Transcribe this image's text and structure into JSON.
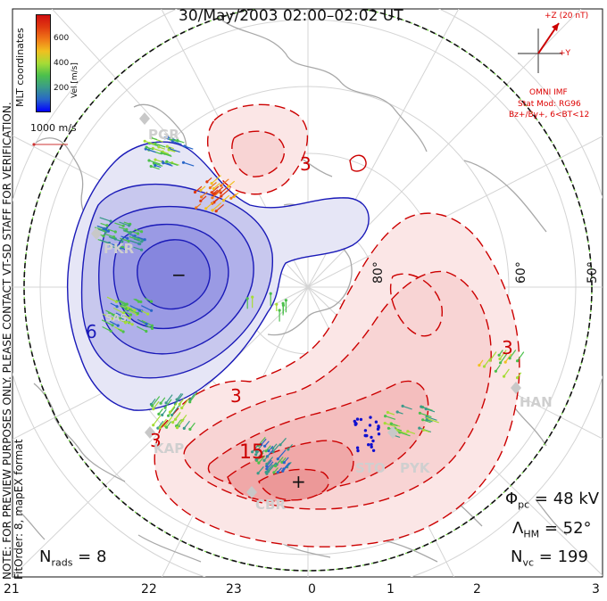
{
  "title": "30/May/2003 02:00–02:02 UT",
  "note_lines": [
    "NOTE: FOR PREVIEW PURPOSES ONLY. PLEASE CONTACT VT-SD STAFF FOR VERIFICATION.",
    "FitOrder: 8, mapEX format"
  ],
  "colorbar": {
    "unit_label": "Vel [m/s]",
    "ticks": [
      "600",
      "400",
      "200"
    ],
    "colors": [
      "#0000ff",
      "#2866c8",
      "#3a9a8a",
      "#4cc04c",
      "#a6dc36",
      "#f0c020",
      "#f07818",
      "#e03a10",
      "#d01010"
    ],
    "coord_label": "MLT coordinates"
  },
  "scale_vector_label": "1000 m/s",
  "imf": {
    "z_label": "+Z (20 nT)",
    "y_label": "+Y",
    "source": "OMNI IMF",
    "stat_mod": "Stat Mod: RG96",
    "condition": "Bz+/By+, 6<BT<12"
  },
  "stats": {
    "phi_pc": "48 kV",
    "lambda_hm": "52°",
    "n_vc": "199",
    "n_rads": "8"
  },
  "mlt_hours": [
    "21",
    "22",
    "23",
    "0",
    "1",
    "2",
    "3"
  ],
  "latitude_labels": [
    "80°",
    "60°",
    "50°"
  ],
  "radar_sites": [
    "PGR",
    "PKR",
    "KAP",
    "SAS",
    "CBR",
    "STO",
    "PYK",
    "HAN"
  ],
  "contour_labels": [
    "3",
    "6",
    "3",
    "3",
    "15",
    "3"
  ],
  "potential_markers": {
    "min": "−",
    "max": "+"
  },
  "colors": {
    "negative_cell": "#1a1ab8",
    "positive_cell": "#cc0000",
    "coastline": "#a8a8a8",
    "boundary": "#66cc33"
  }
}
